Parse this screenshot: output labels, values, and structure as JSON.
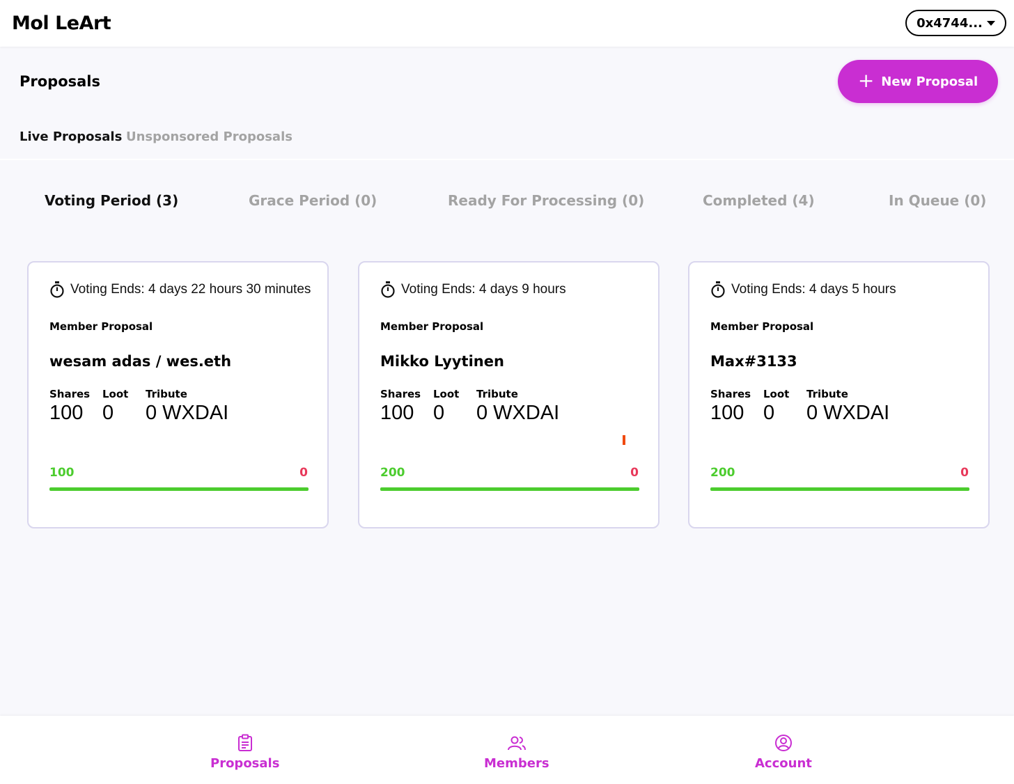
{
  "header": {
    "app_title": "Mol LeArt",
    "account_label": "0x4744..."
  },
  "page": {
    "title": "Proposals",
    "new_proposal_label": "New Proposal"
  },
  "tabs": [
    {
      "label": "Live Proposals",
      "active": true
    },
    {
      "label": "Unsponsored Proposals",
      "active": false
    }
  ],
  "subtabs": [
    {
      "label": "Voting Period (3)",
      "active": true
    },
    {
      "label": "Grace Period (0)",
      "active": false
    },
    {
      "label": "Ready For Processing (0)",
      "active": false
    },
    {
      "label": "Completed (4)",
      "active": false
    },
    {
      "label": "In Queue (0)",
      "active": false
    }
  ],
  "stat_labels": {
    "shares": "Shares",
    "loot": "Loot",
    "tribute": "Tribute"
  },
  "proposals": [
    {
      "voting_ends": "Voting Ends: 4 days 22 hours 30 minutes",
      "type": "Member Proposal",
      "applicant": "wesam adas / wes.eth",
      "shares": "100",
      "loot": "0",
      "tribute": "0 WXDAI",
      "yes_votes": "100",
      "no_votes": "0",
      "yes_fraction": 1.0
    },
    {
      "voting_ends": "Voting Ends: 4 days 9 hours",
      "type": "Member Proposal",
      "applicant": "Mikko Lyytinen",
      "shares": "100",
      "loot": "0",
      "tribute": "0 WXDAI",
      "yes_votes": "200",
      "no_votes": "0",
      "yes_fraction": 1.0
    },
    {
      "voting_ends": "Voting Ends: 4 days 5 hours",
      "type": "Member Proposal",
      "applicant": "Max#3133",
      "shares": "100",
      "loot": "0",
      "tribute": "0 WXDAI",
      "yes_votes": "200",
      "no_votes": "0",
      "yes_fraction": 1.0
    }
  ],
  "bottom_nav": [
    {
      "label": "Proposals",
      "icon": "clipboard-icon"
    },
    {
      "label": "Members",
      "icon": "users-icon"
    },
    {
      "label": "Account",
      "icon": "user-circle-icon"
    }
  ],
  "colors": {
    "accent": "#c92ed2",
    "yes": "#4ccc2e",
    "no": "#e8385a"
  }
}
